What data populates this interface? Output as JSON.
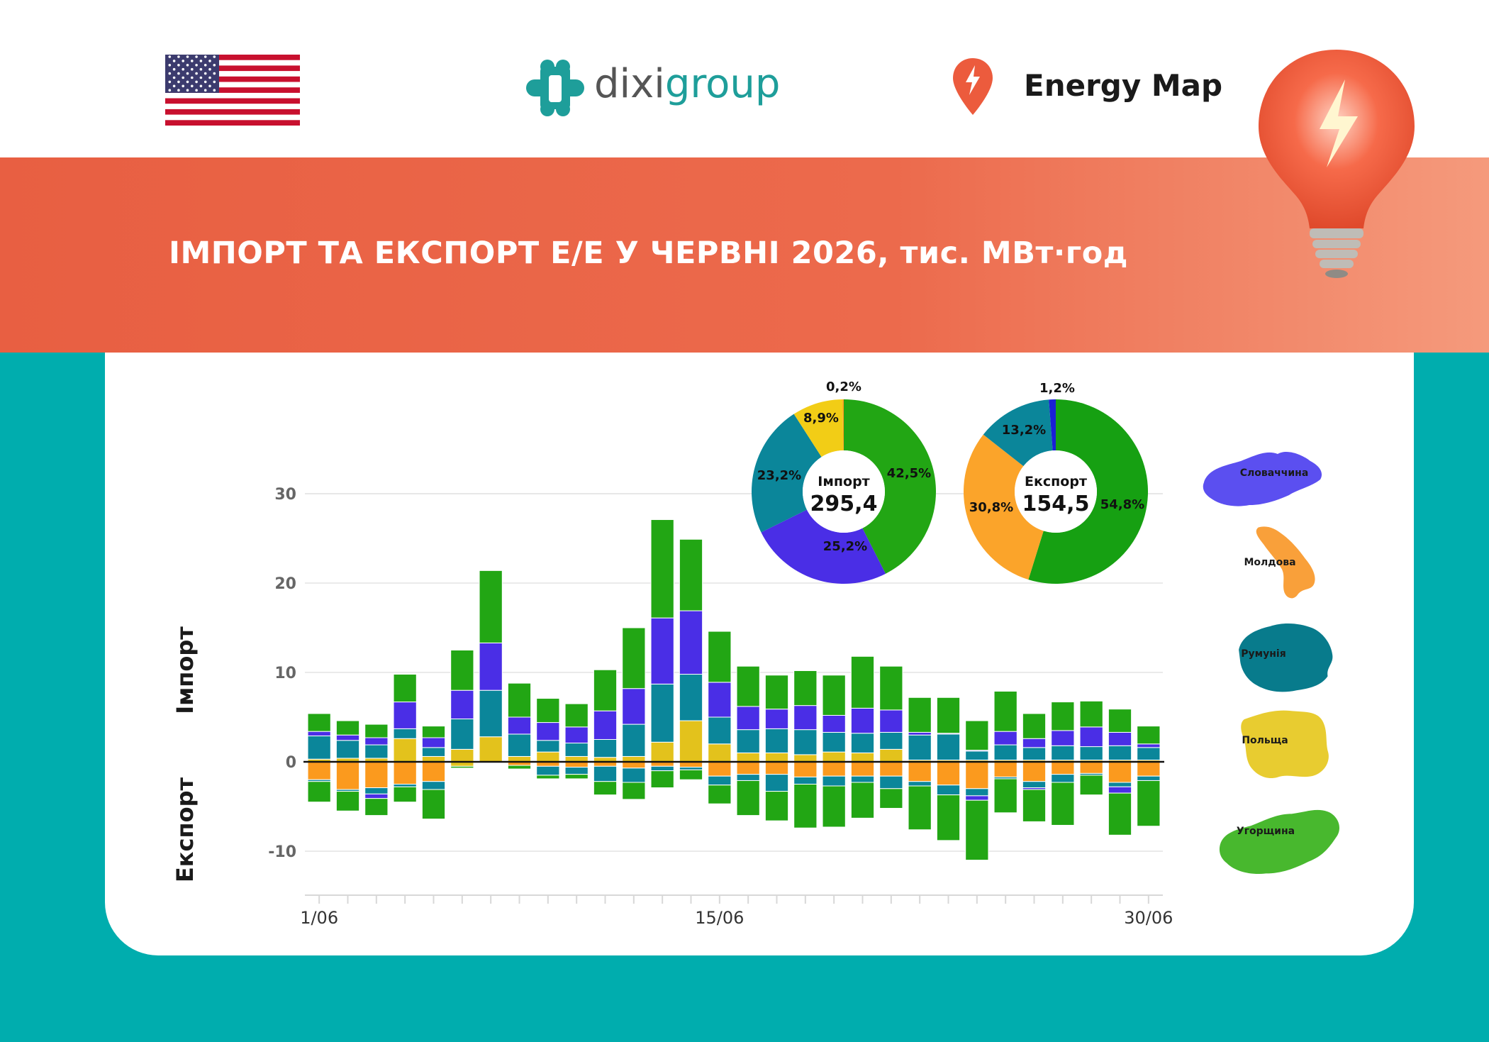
{
  "header": {
    "brand_left": "dixi",
    "brand_right": "group",
    "energy_map": "Energy Map",
    "title": "ІМПОРТ ТА ЕКСПОРТ Е/Е У ЧЕРВНІ 2026, тис. МВт·год"
  },
  "axis_labels": {
    "import": "Імпорт",
    "export": "Експорт"
  },
  "legend": [
    {
      "name": "Словаччина",
      "color": "#5b4ff0"
    },
    {
      "name": "Молдова",
      "color": "#f9a03a"
    },
    {
      "name": "Румунія",
      "color": "#087b8c"
    },
    {
      "name": "Польща",
      "color": "#e8cc30"
    },
    {
      "name": "Угорщина",
      "color": "#48b82e"
    }
  ],
  "colors": {
    "slovakia": "#4a2ee6",
    "moldova": "#fb9a1e",
    "romania": "#0b869a",
    "poland": "#e3c21c",
    "hungary": "#22a614",
    "banner": "#e85f42",
    "teal": "#00adae"
  },
  "chart_data": {
    "type": "bar",
    "stacked": true,
    "x_tick_labels": [
      "1/06",
      "15/06",
      "30/06"
    ],
    "x_tick_positions": [
      1,
      15,
      30
    ],
    "y_ticks": [
      30,
      20,
      10,
      0,
      -10
    ],
    "ylim": [
      -15,
      30
    ],
    "days": [
      1,
      2,
      3,
      4,
      5,
      6,
      7,
      8,
      9,
      10,
      11,
      12,
      13,
      14,
      15,
      16,
      17,
      18,
      19,
      20,
      21,
      22,
      23,
      24,
      25,
      26,
      27,
      28,
      29,
      30
    ],
    "import_series": [
      {
        "name": "Польща",
        "color": "#e3c21c",
        "values": [
          0.3,
          0.4,
          0.4,
          2.6,
          0.6,
          1.4,
          2.8,
          0.6,
          1.1,
          0.6,
          0.5,
          0.6,
          2.2,
          4.6,
          2.0,
          1.0,
          1.0,
          0.8,
          1.1,
          1.0,
          1.4,
          0.2,
          0.2,
          0.2,
          0.2,
          0.2,
          0.2,
          0.2,
          0.2,
          0.2
        ]
      },
      {
        "name": "Румунія",
        "color": "#0b869a",
        "values": [
          2.6,
          2.0,
          1.5,
          1.1,
          1.0,
          3.4,
          5.2,
          2.5,
          1.3,
          1.5,
          2.0,
          3.6,
          6.5,
          5.2,
          3.0,
          2.6,
          2.7,
          2.8,
          2.2,
          2.2,
          1.9,
          2.8,
          2.9,
          1.0,
          1.7,
          1.4,
          1.6,
          1.5,
          1.6,
          1.4
        ]
      },
      {
        "name": "Словаччина",
        "color": "#4a2ee6",
        "values": [
          0.5,
          0.6,
          0.8,
          3.0,
          1.1,
          3.2,
          5.3,
          1.9,
          2.0,
          1.8,
          3.2,
          4.0,
          7.4,
          7.1,
          3.9,
          2.6,
          2.2,
          2.7,
          1.9,
          2.8,
          2.5,
          0.3,
          0.1,
          0.1,
          1.5,
          1.0,
          1.7,
          2.2,
          1.5,
          0.4
        ]
      },
      {
        "name": "Угорщина",
        "color": "#22a614",
        "values": [
          2.0,
          1.6,
          1.5,
          3.1,
          1.3,
          4.5,
          8.1,
          3.8,
          2.7,
          2.6,
          4.6,
          6.8,
          11.0,
          8.0,
          5.7,
          4.5,
          3.8,
          3.9,
          4.5,
          5.8,
          4.9,
          3.9,
          4.0,
          3.3,
          4.5,
          2.8,
          3.2,
          2.9,
          2.6,
          2.0
        ]
      }
    ],
    "export_series": [
      {
        "name": "Польща",
        "color": "#e3c21c",
        "values": [
          0,
          0,
          0,
          0,
          0,
          -0.5,
          0,
          0,
          0,
          0,
          0,
          0,
          0,
          0,
          0,
          0,
          0,
          0,
          0,
          0,
          0,
          0,
          0,
          0,
          0,
          0,
          0,
          0,
          0,
          0
        ]
      },
      {
        "name": "Молдова",
        "color": "#fb9a1e",
        "values": [
          -2.0,
          -3.1,
          -2.9,
          -2.5,
          -2.2,
          0,
          0,
          -0.4,
          -0.5,
          -0.6,
          -0.5,
          -0.7,
          -0.5,
          -0.6,
          -1.6,
          -1.4,
          -1.4,
          -1.7,
          -1.6,
          -1.6,
          -1.6,
          -2.2,
          -2.6,
          -3.0,
          -1.7,
          -2.2,
          -1.4,
          -1.3,
          -2.3,
          -1.6
        ]
      },
      {
        "name": "Румунія",
        "color": "#0b869a",
        "values": [
          -0.2,
          -0.2,
          -0.7,
          -0.3,
          -0.9,
          0,
          0,
          0,
          -1.0,
          -0.8,
          -1.7,
          -1.6,
          -0.5,
          -0.3,
          -1.0,
          -0.7,
          -1.9,
          -0.8,
          -1.1,
          -0.7,
          -1.4,
          -0.5,
          -1.1,
          -0.8,
          -0.2,
          -0.7,
          -0.9,
          -0.2,
          -0.5,
          -0.5
        ]
      },
      {
        "name": "Словаччина",
        "color": "#4a2ee6",
        "values": [
          0,
          0,
          -0.5,
          0,
          0,
          0,
          0,
          0,
          0,
          0,
          0,
          0,
          0,
          0,
          0,
          0,
          0,
          0,
          0,
          0,
          0,
          0,
          0,
          -0.5,
          0,
          -0.2,
          0,
          0,
          -0.7,
          0
        ]
      },
      {
        "name": "Угорщина",
        "color": "#22a614",
        "values": [
          -2.3,
          -2.2,
          -1.9,
          -1.7,
          -3.3,
          -0.2,
          0,
          -0.4,
          -0.4,
          -0.5,
          -1.5,
          -1.9,
          -1.9,
          -1.1,
          -2.1,
          -3.9,
          -3.3,
          -4.9,
          -4.6,
          -4.0,
          -2.2,
          -4.9,
          -5.1,
          -6.7,
          -3.8,
          -3.6,
          -4.8,
          -2.2,
          -4.7,
          -5.1
        ]
      }
    ],
    "pies": [
      {
        "label": "Імпорт",
        "total": "295,4",
        "slices": [
          {
            "name": "Угорщина",
            "value": 42.5,
            "label": "42,5%",
            "color": "#22a614"
          },
          {
            "name": "Словаччина",
            "value": 25.2,
            "label": "25,2%",
            "color": "#4a2ee6"
          },
          {
            "name": "Румунія",
            "value": 23.2,
            "label": "23,2%",
            "color": "#0b869a"
          },
          {
            "name": "Польща",
            "value": 8.9,
            "label": "8,9%",
            "color": "#f2cd16"
          },
          {
            "name": "Молдова",
            "value": 0.2,
            "label": "0,2%",
            "color": "#fb9a1e"
          }
        ]
      },
      {
        "label": "Експорт",
        "total": "154,5",
        "slices": [
          {
            "name": "Угорщина",
            "value": 54.8,
            "label": "54,8%",
            "color": "#16a012"
          },
          {
            "name": "Молдова",
            "value": 30.8,
            "label": "30,8%",
            "color": "#fba42a"
          },
          {
            "name": "Румунія",
            "value": 13.2,
            "label": "13,2%",
            "color": "#0b869a"
          },
          {
            "name": "Словаччина",
            "value": 1.2,
            "label": "1,2%",
            "color": "#1a1fd6"
          }
        ]
      }
    ]
  }
}
